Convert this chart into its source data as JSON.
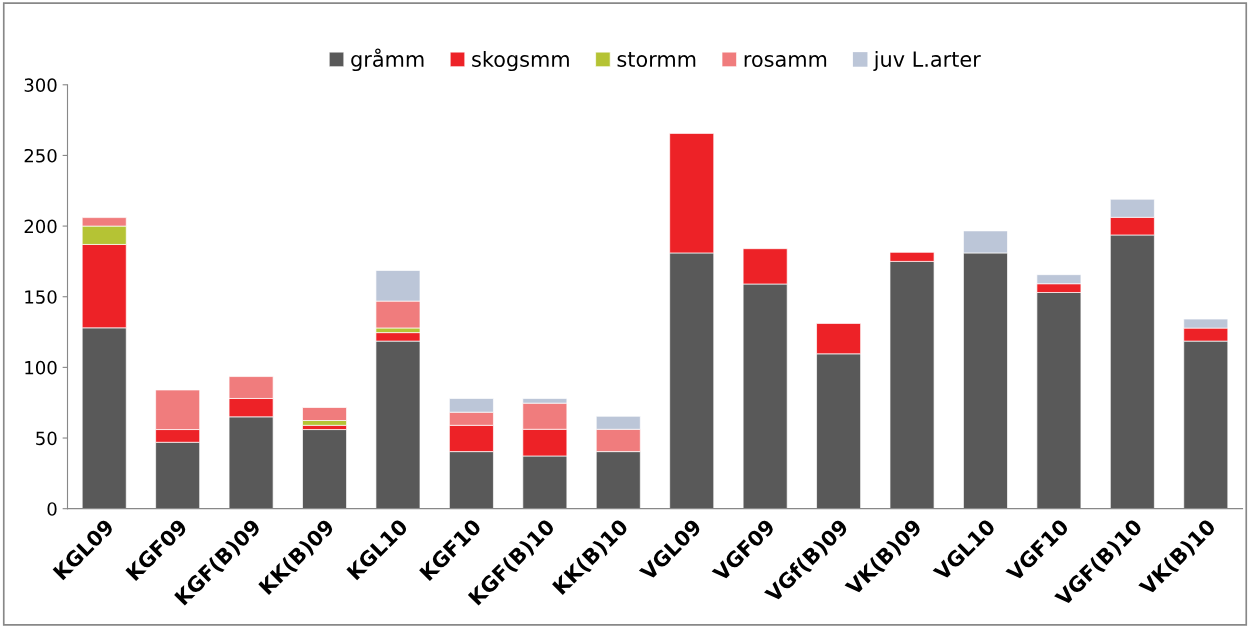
{
  "chart_data": {
    "type": "bar",
    "stacked": true,
    "categories": [
      "KGL09",
      "KGF09",
      "KGF(B)09",
      "KK(B)09",
      "KGL10",
      "KGF10",
      "KGF(B)10",
      "KK(B)10",
      "VGL09",
      "VGF09",
      "VGf(B)09",
      "VK(B)09",
      "VGL10",
      "VGF10",
      "VGF(B)10",
      "VK(B)10"
    ],
    "series": [
      {
        "name": "gråmm",
        "color": "#595959",
        "values": [
          128,
          47,
          65,
          56,
          118.6,
          40.4,
          37.3,
          40.4,
          181,
          159,
          109.6,
          175,
          181,
          153,
          193.7,
          118.6
        ]
      },
      {
        "name": "skogsmm",
        "color": "#ed2227",
        "values": [
          59,
          9,
          13,
          3,
          6,
          18.6,
          18.9,
          0,
          84.6,
          25,
          21.5,
          6.4,
          0,
          6.2,
          12.5,
          9.2
        ]
      },
      {
        "name": "stormm",
        "color": "#b5c334",
        "values": [
          13,
          0,
          0,
          3.4,
          3.3,
          0,
          0,
          0,
          0,
          0,
          0,
          0,
          0,
          0,
          0,
          0
        ]
      },
      {
        "name": "rosamm",
        "color": "#f07c7d",
        "values": [
          6,
          28,
          15.5,
          9.2,
          19,
          9.3,
          18.5,
          15.8,
          0,
          0,
          0,
          0,
          0,
          0,
          0,
          0
        ]
      },
      {
        "name": "juv L.arter",
        "color": "#bcc6d8",
        "values": [
          0,
          0,
          0,
          0,
          21.7,
          9.7,
          3.3,
          9.2,
          0,
          0,
          0,
          0,
          15.6,
          6.4,
          12.8,
          6.4
        ]
      }
    ],
    "ylim": [
      0,
      300
    ],
    "yticks": [
      0,
      50,
      100,
      150,
      200,
      250,
      300
    ],
    "grid": false,
    "legend": "top"
  }
}
